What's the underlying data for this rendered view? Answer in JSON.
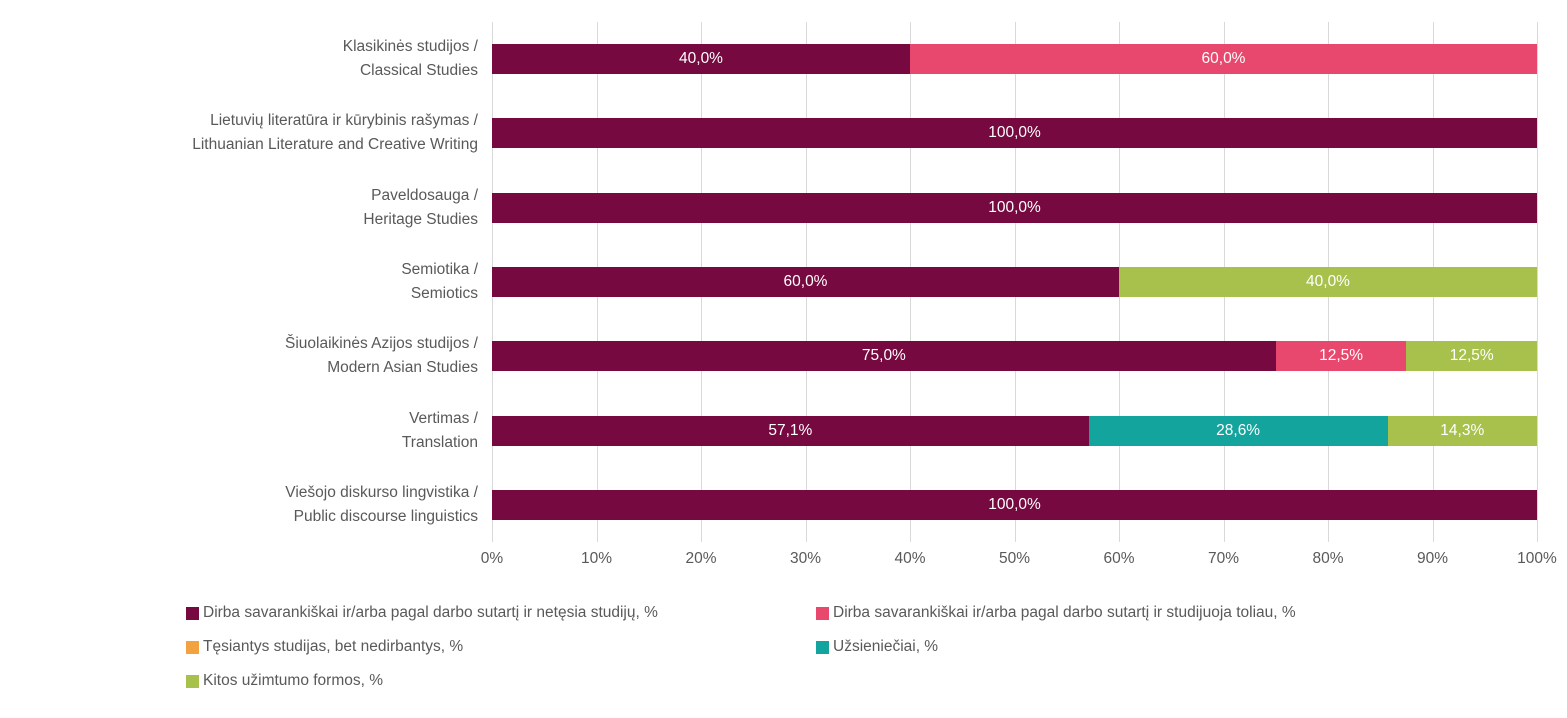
{
  "chart_data": {
    "type": "bar",
    "subtype": "horizontal-stacked-100",
    "title": "",
    "xlabel": "",
    "ylabel": "",
    "xlim": [
      0,
      100
    ],
    "grid": true,
    "legend_position": "bottom",
    "x_axis_ticks": [
      "0%",
      "10%",
      "20%",
      "30%",
      "40%",
      "50%",
      "60%",
      "70%",
      "80%",
      "90%",
      "100%"
    ],
    "categories": [
      {
        "line1": "Klasikinės studijos /",
        "line2": "Classical Studies"
      },
      {
        "line1": "Lietuvių literatūra ir kūrybinis rašymas /",
        "line2": "Lithuanian Literature and Creative Writing"
      },
      {
        "line1": "Paveldosauga /",
        "line2": "Heritage Studies"
      },
      {
        "line1": "Semiotika /",
        "line2": "Semiotics"
      },
      {
        "line1": "Šiuolaikinės Azijos studijos /",
        "line2": "Modern Asian Studies"
      },
      {
        "line1": "Vertimas /",
        "line2": "Translation"
      },
      {
        "line1": "Viešojo diskurso lingvistika /",
        "line2": "Public discourse linguistics"
      }
    ],
    "series": [
      {
        "name": "Dirba savarankiškai ir/arba pagal darbo sutartį ir netęsia studijų, %",
        "color": "#76093F",
        "values": [
          40.0,
          100.0,
          100.0,
          60.0,
          75.0,
          57.1,
          100.0
        ],
        "labels": [
          "40,0%",
          "100,0%",
          "100,0%",
          "60,0%",
          "75,0%",
          "57,1%",
          "100,0%"
        ]
      },
      {
        "name": "Dirba savarankiškai ir/arba pagal darbo sutartį ir studijuoja toliau, %",
        "color": "#E8486D",
        "values": [
          60.0,
          0,
          0,
          0,
          12.5,
          0,
          0
        ],
        "labels": [
          "60,0%",
          null,
          null,
          null,
          "12,5%",
          null,
          null
        ]
      },
      {
        "name": "Tęsiantys studijas, bet nedirbantys, %",
        "color": "#F2A23E",
        "values": [
          0,
          0,
          0,
          0,
          0,
          0,
          0
        ],
        "labels": [
          null,
          null,
          null,
          null,
          null,
          null,
          null
        ]
      },
      {
        "name": "Užsieniečiai, %",
        "color": "#12A49D",
        "values": [
          0,
          0,
          0,
          0,
          0,
          28.6,
          0
        ],
        "labels": [
          null,
          null,
          null,
          null,
          null,
          "28,6%",
          null
        ]
      },
      {
        "name": "Kitos užimtumo formos, %",
        "color": "#A8C14D",
        "values": [
          0,
          0,
          0,
          40.0,
          12.5,
          14.3,
          0
        ],
        "labels": [
          null,
          null,
          null,
          "40,0%",
          "12,5%",
          "14,3%",
          null
        ]
      }
    ]
  }
}
